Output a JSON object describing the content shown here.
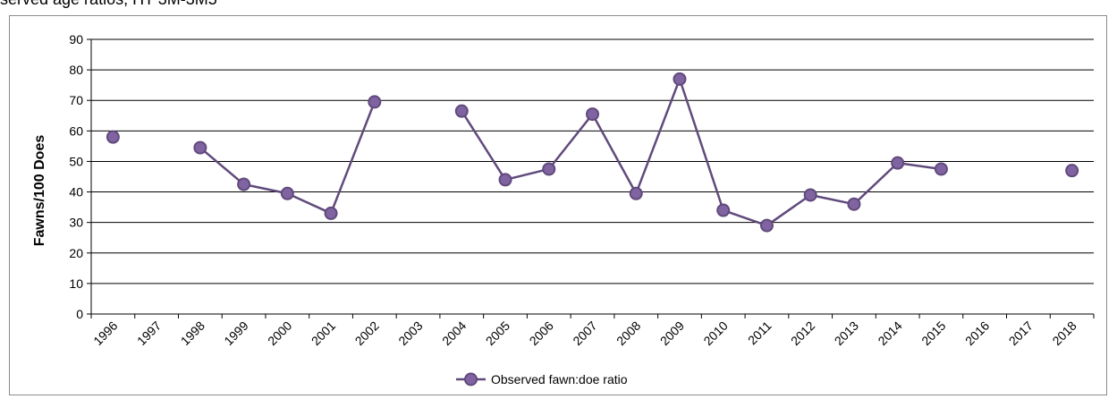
{
  "page": {
    "top_caption": "served age ratios, HT 3M-3M5"
  },
  "chart_data": {
    "type": "line",
    "title": "",
    "xlabel": "",
    "ylabel": "Fawns/100 Does",
    "ylim": [
      0,
      90
    ],
    "yticks": [
      0,
      10,
      20,
      30,
      40,
      50,
      60,
      70,
      80,
      90
    ],
    "grid": "horizontal",
    "legend_position": "bottom-center",
    "categories": [
      "1996",
      "1997",
      "1998",
      "1999",
      "2000",
      "2001",
      "2002",
      "2003",
      "2004",
      "2005",
      "2006",
      "2007",
      "2008",
      "2009",
      "2010",
      "2011",
      "2012",
      "2013",
      "2014",
      "2015",
      "2016",
      "2017",
      "2018"
    ],
    "series": [
      {
        "name": "Observed fawn:doe ratio",
        "color": "#604a7b",
        "marker_fill": "#8064a2",
        "values": [
          58,
          null,
          54.5,
          42.5,
          39.5,
          33,
          69.5,
          null,
          66.5,
          44,
          47.5,
          65.5,
          39.5,
          77,
          34,
          29,
          39,
          36,
          49.5,
          47.5,
          null,
          null,
          47
        ]
      }
    ]
  }
}
